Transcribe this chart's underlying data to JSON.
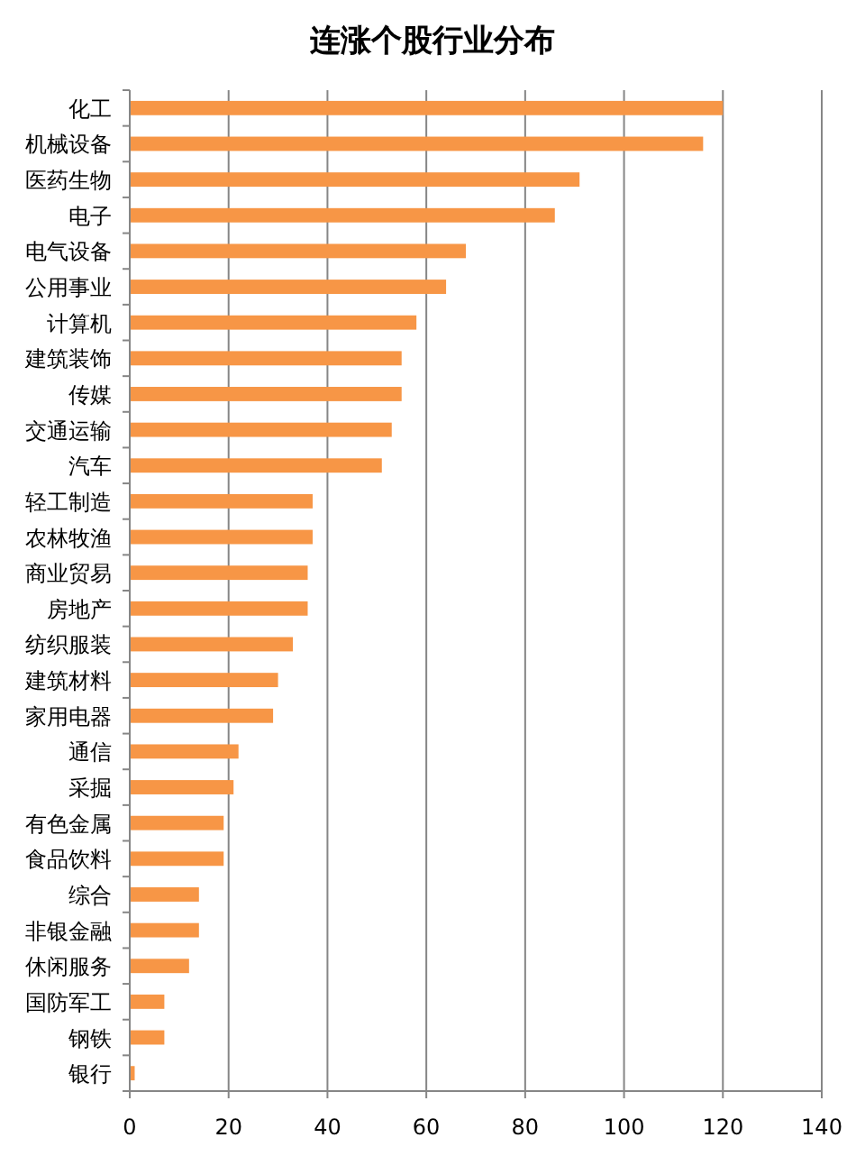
{
  "chart_data": {
    "type": "bar",
    "orientation": "horizontal",
    "title": "连涨个股行业分布",
    "categories": [
      "化工",
      "机械设备",
      "医药生物",
      "电子",
      "电气设备",
      "公用事业",
      "计算机",
      "建筑装饰",
      "传媒",
      "交通运输",
      "汽车",
      "轻工制造",
      "农林牧渔",
      "商业贸易",
      "房地产",
      "纺织服装",
      "建筑材料",
      "家用电器",
      "通信",
      "采掘",
      "有色金属",
      "食品饮料",
      "综合",
      "非银金融",
      "休闲服务",
      "国防军工",
      "钢铁",
      "银行"
    ],
    "values": [
      120,
      116,
      91,
      86,
      68,
      64,
      58,
      55,
      55,
      53,
      51,
      37,
      37,
      36,
      36,
      33,
      30,
      29,
      22,
      21,
      19,
      19,
      14,
      14,
      12,
      7,
      7,
      1
    ],
    "color": "#f79646",
    "xlim": [
      0,
      140
    ],
    "xticks": [
      0,
      20,
      40,
      60,
      80,
      100,
      120,
      140
    ],
    "grid": "x"
  }
}
